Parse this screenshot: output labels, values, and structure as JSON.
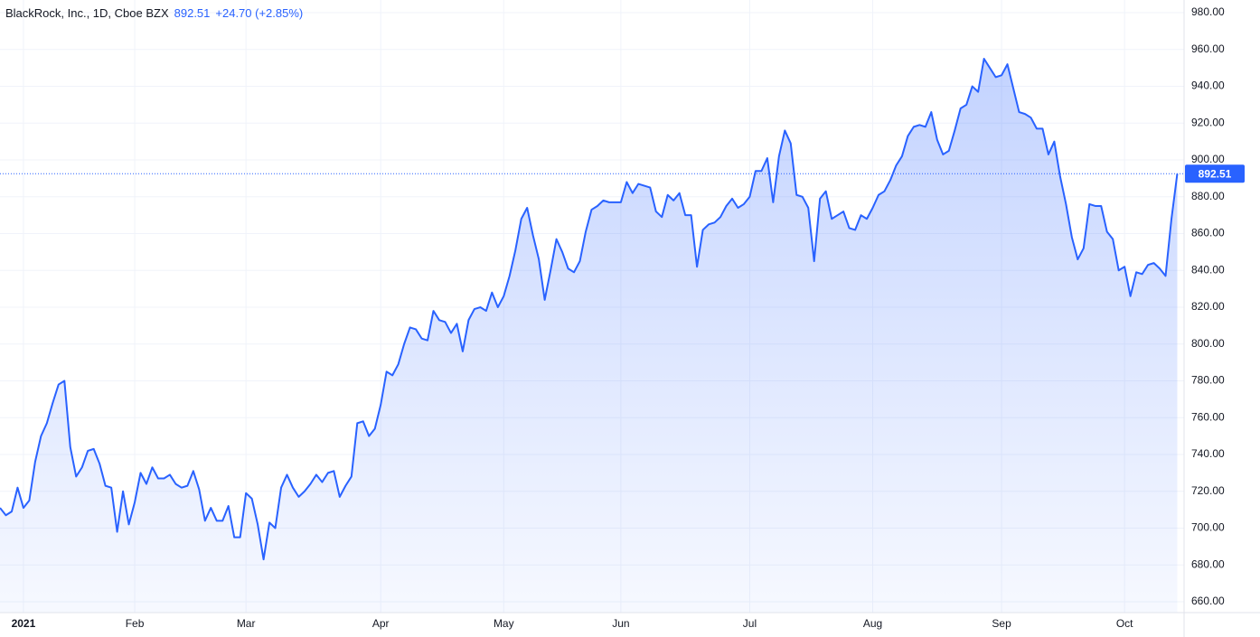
{
  "chart_data": {
    "type": "area",
    "title": "BlackRock, Inc., 1D, Cboe BZX",
    "change": "+24.70 (+2.85%)",
    "color": "#2962ff",
    "grid": true,
    "categories": [
      null,
      null,
      null,
      null,
      "2021",
      null,
      null,
      null,
      null,
      null,
      null,
      null,
      null,
      null,
      null,
      null,
      null,
      null,
      null,
      null,
      null,
      null,
      null,
      "Feb",
      null,
      null,
      null,
      null,
      null,
      null,
      null,
      null,
      null,
      null,
      null,
      null,
      null,
      null,
      null,
      null,
      null,
      null,
      "Mar",
      null,
      null,
      null,
      null,
      null,
      null,
      null,
      null,
      null,
      null,
      null,
      null,
      null,
      null,
      null,
      null,
      null,
      null,
      null,
      null,
      null,
      null,
      "Apr",
      null,
      null,
      null,
      null,
      null,
      null,
      null,
      null,
      null,
      null,
      null,
      null,
      null,
      null,
      null,
      null,
      null,
      null,
      null,
      null,
      "May",
      null,
      null,
      null,
      null,
      null,
      null,
      null,
      null,
      null,
      null,
      null,
      null,
      null,
      null,
      null,
      null,
      null,
      null,
      null,
      "Jun",
      null,
      null,
      null,
      null,
      null,
      null,
      null,
      null,
      null,
      null,
      null,
      null,
      null,
      null,
      null,
      null,
      null,
      null,
      null,
      null,
      null,
      "Jul",
      null,
      null,
      null,
      null,
      null,
      null,
      null,
      null,
      null,
      null,
      null,
      null,
      null,
      null,
      null,
      null,
      null,
      null,
      null,
      null,
      "Aug",
      null,
      null,
      null,
      null,
      null,
      null,
      null,
      null,
      null,
      null,
      null,
      null,
      null,
      null,
      null,
      null,
      null,
      null,
      null,
      null,
      null,
      "Sep",
      null,
      null,
      null,
      null,
      null,
      null,
      null,
      null,
      null,
      null,
      null,
      null,
      null,
      null,
      null,
      null,
      null,
      null,
      null,
      null,
      "Oct",
      null,
      null,
      null,
      null,
      null,
      null,
      null,
      null,
      null
    ],
    "values": [
      711,
      707,
      709,
      722,
      711,
      715,
      736,
      750,
      757,
      768,
      778,
      780,
      744,
      728,
      733,
      742,
      743,
      735,
      723,
      722,
      698,
      720,
      702,
      714,
      730,
      724,
      733,
      727,
      727,
      729,
      724,
      722,
      723,
      731,
      721,
      704,
      711,
      704,
      704,
      712,
      695,
      695,
      719,
      716,
      702,
      683,
      703,
      700,
      722,
      729,
      722,
      717,
      720,
      724,
      729,
      725,
      730,
      731,
      717,
      723,
      728,
      757,
      758,
      750,
      754,
      767,
      785,
      783,
      789,
      800,
      809,
      808,
      803,
      802,
      818,
      813,
      812,
      806,
      811,
      796,
      813,
      819,
      820,
      818,
      828,
      820,
      826,
      837,
      851,
      868,
      874,
      859,
      846,
      824,
      840,
      857,
      850,
      841,
      839,
      845,
      861,
      873,
      875,
      878,
      877,
      877,
      877,
      888,
      882,
      887,
      886,
      885,
      872,
      869,
      881,
      878,
      882,
      870,
      870,
      842,
      862,
      865,
      866,
      869,
      875,
      879,
      874,
      876,
      880,
      894,
      894,
      901,
      877,
      902,
      916,
      909,
      881,
      880,
      874,
      845,
      879,
      883,
      868,
      870,
      872,
      863,
      862,
      870,
      868,
      874,
      881,
      883,
      889,
      897,
      902,
      913,
      918,
      919,
      918,
      926,
      911,
      903,
      905,
      916,
      928,
      930,
      940,
      937,
      955,
      950,
      945,
      946,
      952,
      939,
      926,
      925,
      923,
      917,
      917,
      903,
      910,
      891,
      876,
      858,
      846,
      852,
      876,
      875,
      875,
      861,
      857,
      840,
      842,
      826,
      839,
      838,
      843,
      844,
      841,
      837,
      867.81,
      892.51
    ],
    "ylim": [
      654.1,
      986.9
    ],
    "yticks": [
      {
        "value": 660,
        "label": "660.00"
      },
      {
        "value": 680,
        "label": "680.00"
      },
      {
        "value": 700,
        "label": "700.00"
      },
      {
        "value": 720,
        "label": "720.00"
      },
      {
        "value": 740,
        "label": "740.00"
      },
      {
        "value": 760,
        "label": "760.00"
      },
      {
        "value": 780,
        "label": "780.00"
      },
      {
        "value": 800,
        "label": "800.00"
      },
      {
        "value": 820,
        "label": "820.00"
      },
      {
        "value": 840,
        "label": "840.00"
      },
      {
        "value": 860,
        "label": "860.00"
      },
      {
        "value": 880,
        "label": "880.00"
      },
      {
        "value": 900,
        "label": "900.00"
      },
      {
        "value": 920,
        "label": "920.00"
      },
      {
        "value": 940,
        "label": "940.00"
      },
      {
        "value": 960,
        "label": "960.00"
      },
      {
        "value": 980,
        "label": "980.00"
      }
    ]
  }
}
